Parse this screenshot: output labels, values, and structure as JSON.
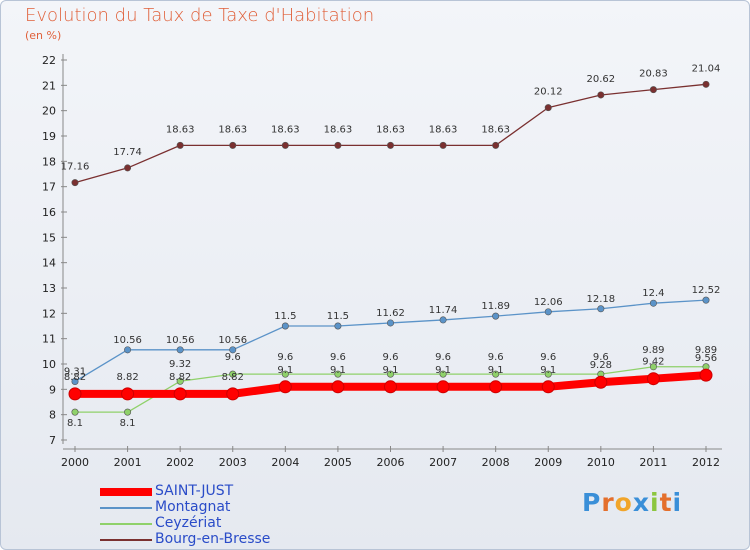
{
  "title": "Evolution du Taux de Taxe d'Habitation",
  "subtitle": "(en %)",
  "logo": {
    "text": "Proxiti",
    "letters": [
      {
        "ch": "P",
        "color": "#3a8fd8"
      },
      {
        "ch": "r",
        "color": "#e46f2c"
      },
      {
        "ch": "o",
        "color": "#f1a52a"
      },
      {
        "ch": "x",
        "color": "#3a8fd8"
      },
      {
        "ch": "i",
        "color": "#8cc63f"
      },
      {
        "ch": "t",
        "color": "#e46f2c"
      },
      {
        "ch": "i",
        "color": "#3a8fd8"
      }
    ]
  },
  "chart_data": {
    "type": "line",
    "title": "Evolution du Taux de Taxe d'Habitation",
    "subtitle": "(en %)",
    "x": [
      "2000",
      "2001",
      "2002",
      "2003",
      "2004",
      "2005",
      "2006",
      "2007",
      "2008",
      "2009",
      "2010",
      "2011",
      "2012"
    ],
    "ylim": [
      7,
      22
    ],
    "yticks": [
      7,
      8,
      9,
      10,
      11,
      12,
      13,
      14,
      15,
      16,
      17,
      18,
      19,
      20,
      21,
      22
    ],
    "grid": false,
    "legend_position": "bottom-left",
    "series": [
      {
        "name": "SAINT-JUST",
        "color": "#ff0000",
        "values": [
          8.82,
          8.82,
          8.82,
          8.82,
          9.1,
          9.1,
          9.1,
          9.1,
          9.1,
          9.1,
          9.28,
          9.42,
          9.56
        ],
        "labels": [
          "8.82",
          "8.82",
          "8.82",
          "8.82",
          "9.1",
          "9.1",
          "9.1",
          "9.1",
          "9.1",
          "9.1",
          "9.28",
          "9.42",
          "9.56"
        ]
      },
      {
        "name": "Montagnat",
        "color": "#5b93c8",
        "values": [
          9.31,
          10.56,
          10.56,
          10.56,
          11.5,
          11.5,
          11.62,
          11.74,
          11.89,
          12.06,
          12.18,
          12.4,
          12.52
        ],
        "labels": [
          "9.31",
          "10.56",
          "10.56",
          "10.56",
          "11.5",
          "11.5",
          "11.62",
          "11.74",
          "11.89",
          "12.06",
          "12.18",
          "12.4",
          "12.52"
        ]
      },
      {
        "name": "Ceyzériat",
        "color": "#8fd16a",
        "values": [
          8.1,
          8.1,
          9.32,
          9.6,
          9.6,
          9.6,
          9.6,
          9.6,
          9.6,
          9.6,
          9.6,
          9.89,
          9.89
        ],
        "labels": [
          "8.1",
          "8.1",
          "9.32",
          "9.6",
          "9.6",
          "9.6",
          "9.6",
          "9.6",
          "9.6",
          "9.6",
          "9.6",
          "9.89",
          "9.89"
        ]
      },
      {
        "name": "Bourg-en-Bresse",
        "color": "#7a3030",
        "values": [
          17.16,
          17.74,
          18.63,
          18.63,
          18.63,
          18.63,
          18.63,
          18.63,
          18.63,
          20.12,
          20.62,
          20.83,
          21.04
        ],
        "labels": [
          "17.16",
          "17.74",
          "18.63",
          "18.63",
          "18.63",
          "18.63",
          "18.63",
          "18.63",
          "18.63",
          "20.12",
          "20.62",
          "20.83",
          "21.04"
        ]
      }
    ]
  }
}
